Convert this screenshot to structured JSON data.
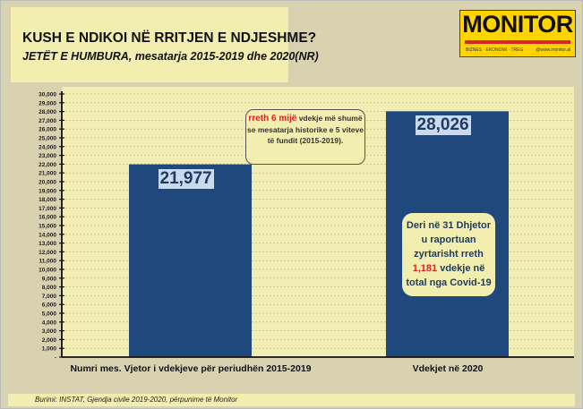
{
  "header": {
    "title": "KUSH E NDIKOI NË RRITJEN E NDJESHME?",
    "subtitle": "JETËT E HUMBURA, mesatarja 2015-2019 dhe 2020(NR)"
  },
  "logo": {
    "word": "MONITOR",
    "tagline": "BIZNES · EKONOMI · TREG",
    "url": "@www.monitor.al"
  },
  "chart_data": {
    "type": "bar",
    "title": "JETËT E HUMBURA, mesatarja 2015-2019 dhe 2020(NR)",
    "categories": [
      "Numri mes. Vjetor i vdekjeve për periudhën 2015-2019",
      "Vdekjet në 2020"
    ],
    "values": [
      21977,
      28026
    ],
    "value_labels": [
      "21,977",
      "28,026"
    ],
    "ylim": [
      0,
      30000
    ],
    "ytick_step": 1000,
    "zero_label": "-",
    "grid": true,
    "bar_color": "#1f487c"
  },
  "annotations": {
    "box1": {
      "highlight": "rreth 6 mijë",
      "text": " vdekje më shumë se mesatarja historike e 5 viteve të fundit (2015-2019)."
    },
    "box2": {
      "line1": "Deri në 31 Dhjetor",
      "line2": "u raportuan",
      "line3": "zyrtarisht rreth",
      "highlight": "1,181",
      "line4": " vdekje në",
      "line5": "total nga Covid-19"
    }
  },
  "source": "Burimi: INSTAT, Gjendja civile 2019-2020, përpunime të Monitor"
}
